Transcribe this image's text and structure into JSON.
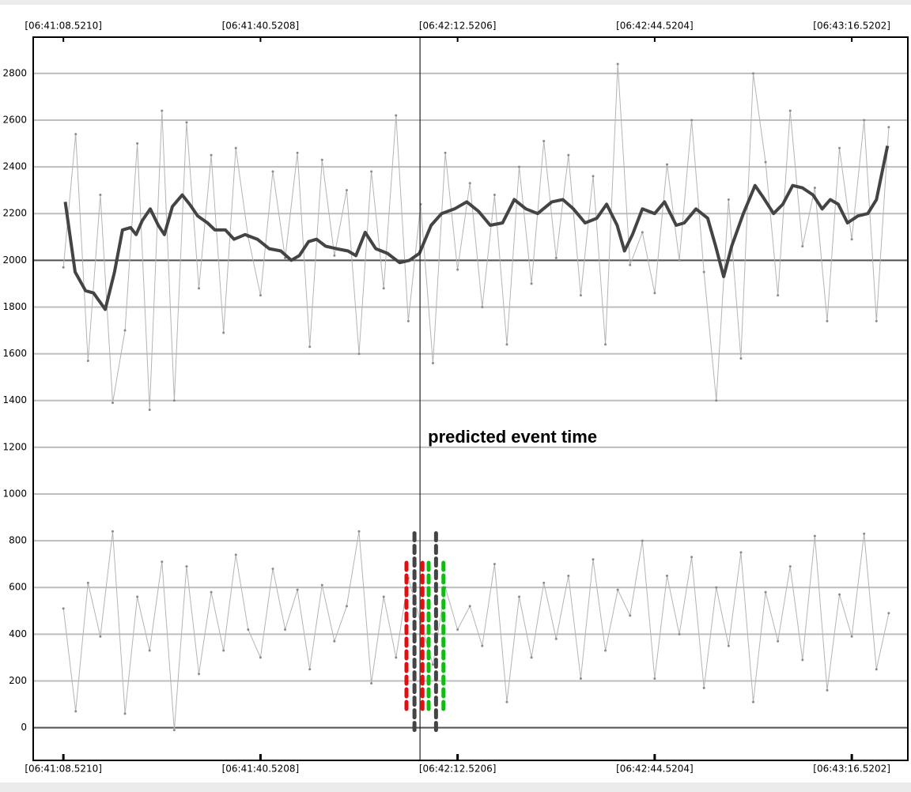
{
  "chart_data": {
    "type": "line",
    "xlim": [
      -4.9,
      137.1
    ],
    "xticks": [
      {
        "value": 0,
        "label": "[06:41:08.5210]"
      },
      {
        "value": 32,
        "label": "[06:41:40.5208]"
      },
      {
        "value": 64,
        "label": "[06:42:12.5206]"
      },
      {
        "value": 96,
        "label": "[06:42:44.5204]"
      },
      {
        "value": 128,
        "label": "[06:43:16.5202]"
      }
    ],
    "ylim": [
      -140,
      2955
    ],
    "yticks": [
      0,
      200,
      400,
      600,
      800,
      1000,
      1200,
      1400,
      1600,
      1800,
      2000,
      2200,
      2400,
      2600,
      2800
    ],
    "grid": true,
    "strong_gridlines": [
      0,
      2000
    ],
    "event_x": 57.9,
    "annotation": "predicted event time",
    "series": [
      {
        "color": "#b4b4b4",
        "width": 1,
        "dots": true,
        "x": [
          0,
          2,
          4,
          6,
          8,
          10,
          12,
          14,
          16,
          18,
          20,
          22,
          24,
          26,
          28,
          30,
          32,
          34,
          36,
          38,
          40,
          42,
          44,
          46,
          48,
          50,
          52,
          54,
          56,
          58,
          60,
          62,
          64,
          66,
          68,
          70,
          72,
          74,
          76,
          78,
          80,
          82,
          84,
          86,
          88,
          90,
          92,
          94,
          96,
          98,
          100,
          102,
          104,
          106,
          108,
          110,
          112,
          114,
          116,
          118,
          120,
          122,
          124,
          126,
          128,
          130,
          132,
          134
        ],
        "values": [
          1970,
          2540,
          1570,
          2280,
          1390,
          1700,
          2500,
          1360,
          2640,
          1400,
          2590,
          1880,
          2450,
          1690,
          2480,
          2100,
          1850,
          2380,
          2010,
          2460,
          1630,
          2430,
          2020,
          2300,
          1600,
          2380,
          1880,
          2620,
          1740,
          2240,
          1560,
          2460,
          1960,
          2330,
          1800,
          2280,
          1640,
          2400,
          1900,
          2510,
          2010,
          2450,
          1850,
          2360,
          1640,
          2840,
          1980,
          2120,
          1860,
          2410,
          2000,
          2600,
          1950,
          1400,
          2260,
          1580,
          2800,
          2420,
          1850,
          2640,
          2060,
          2310,
          1740,
          2480,
          2090,
          2600,
          1740,
          2570
        ]
      },
      {
        "color": "#b4b4b4",
        "width": 1,
        "dots": true,
        "x": [
          0,
          2,
          4,
          6,
          8,
          10,
          12,
          14,
          16,
          18,
          20,
          22,
          24,
          26,
          28,
          30,
          32,
          34,
          36,
          38,
          40,
          42,
          44,
          46,
          48,
          50,
          52,
          54,
          56,
          58,
          60,
          62,
          64,
          66,
          68,
          70,
          72,
          74,
          76,
          78,
          80,
          82,
          84,
          86,
          88,
          90,
          92,
          94,
          96,
          98,
          100,
          102,
          104,
          106,
          108,
          110,
          112,
          114,
          116,
          118,
          120,
          122,
          124,
          126,
          128,
          130,
          132,
          134
        ],
        "values": [
          510,
          70,
          620,
          390,
          840,
          60,
          560,
          330,
          710,
          -10,
          690,
          230,
          580,
          330,
          740,
          420,
          300,
          680,
          420,
          590,
          250,
          610,
          370,
          520,
          840,
          190,
          560,
          300,
          640,
          450,
          270,
          600,
          420,
          520,
          350,
          700,
          110,
          560,
          300,
          620,
          380,
          650,
          210,
          720,
          330,
          590,
          480,
          800,
          210,
          650,
          400,
          730,
          170,
          600,
          350,
          750,
          110,
          580,
          370,
          690,
          290,
          820,
          160,
          570,
          390,
          830,
          250,
          490
        ]
      },
      {
        "color": "#444444",
        "width": 4,
        "dots": false,
        "x": [
          0.3,
          1.9,
          3.6,
          4.9,
          6.8,
          8.3,
          9.6,
          10.9,
          11.8,
          12.8,
          14.1,
          15.4,
          16.4,
          17.7,
          19.3,
          20.5,
          21.8,
          23.4,
          24.6,
          26.3,
          27.7,
          29.5,
          31.5,
          33.4,
          35.3,
          37.0,
          38.3,
          39.8,
          41.1,
          42.6,
          44.3,
          46.2,
          47.5,
          49.0,
          50.7,
          52.6,
          54.6,
          56.2,
          57.8,
          59.7,
          61.4,
          63.5,
          65.5,
          67.4,
          69.3,
          71.3,
          73.2,
          75.1,
          77.0,
          79.3,
          81.1,
          82.8,
          84.7,
          86.6,
          88.2,
          89.9,
          91.1,
          92.4,
          94.0,
          96.0,
          97.6,
          99.5,
          100.8,
          102.7,
          104.6,
          105.9,
          107.2,
          108.5,
          110.4,
          112.3,
          113.6,
          115.3,
          116.8,
          118.4,
          120.0,
          121.7,
          123.2,
          124.5,
          125.8,
          127.3,
          129.0,
          130.6,
          132.0,
          133.8
        ],
        "values": [
          2250,
          1950,
          1870,
          1860,
          1790,
          1950,
          2130,
          2140,
          2110,
          2170,
          2220,
          2150,
          2110,
          2230,
          2280,
          2240,
          2190,
          2160,
          2130,
          2130,
          2090,
          2110,
          2090,
          2050,
          2040,
          2000,
          2020,
          2080,
          2090,
          2060,
          2050,
          2040,
          2020,
          2120,
          2050,
          2030,
          1990,
          2000,
          2030,
          2150,
          2200,
          2220,
          2250,
          2210,
          2150,
          2160,
          2260,
          2220,
          2200,
          2250,
          2260,
          2220,
          2160,
          2180,
          2240,
          2150,
          2040,
          2110,
          2220,
          2200,
          2250,
          2150,
          2160,
          2220,
          2180,
          2060,
          1930,
          2060,
          2200,
          2320,
          2270,
          2200,
          2240,
          2320,
          2310,
          2280,
          2220,
          2260,
          2240,
          2160,
          2190,
          2200,
          2260,
          2490
        ]
      }
    ],
    "markers": [
      {
        "x": 55.7,
        "color": "#dd1111",
        "y": [
          80,
          720
        ]
      },
      {
        "x": 57.0,
        "color": "#444444",
        "y": [
          -10,
          850
        ]
      },
      {
        "x": 58.3,
        "color": "#dd1111",
        "y": [
          80,
          720
        ]
      },
      {
        "x": 59.3,
        "color": "#11bb11",
        "y": [
          80,
          720
        ]
      },
      {
        "x": 60.5,
        "color": "#444444",
        "y": [
          -10,
          850
        ]
      },
      {
        "x": 61.7,
        "color": "#11bb11",
        "y": [
          80,
          720
        ]
      }
    ]
  }
}
